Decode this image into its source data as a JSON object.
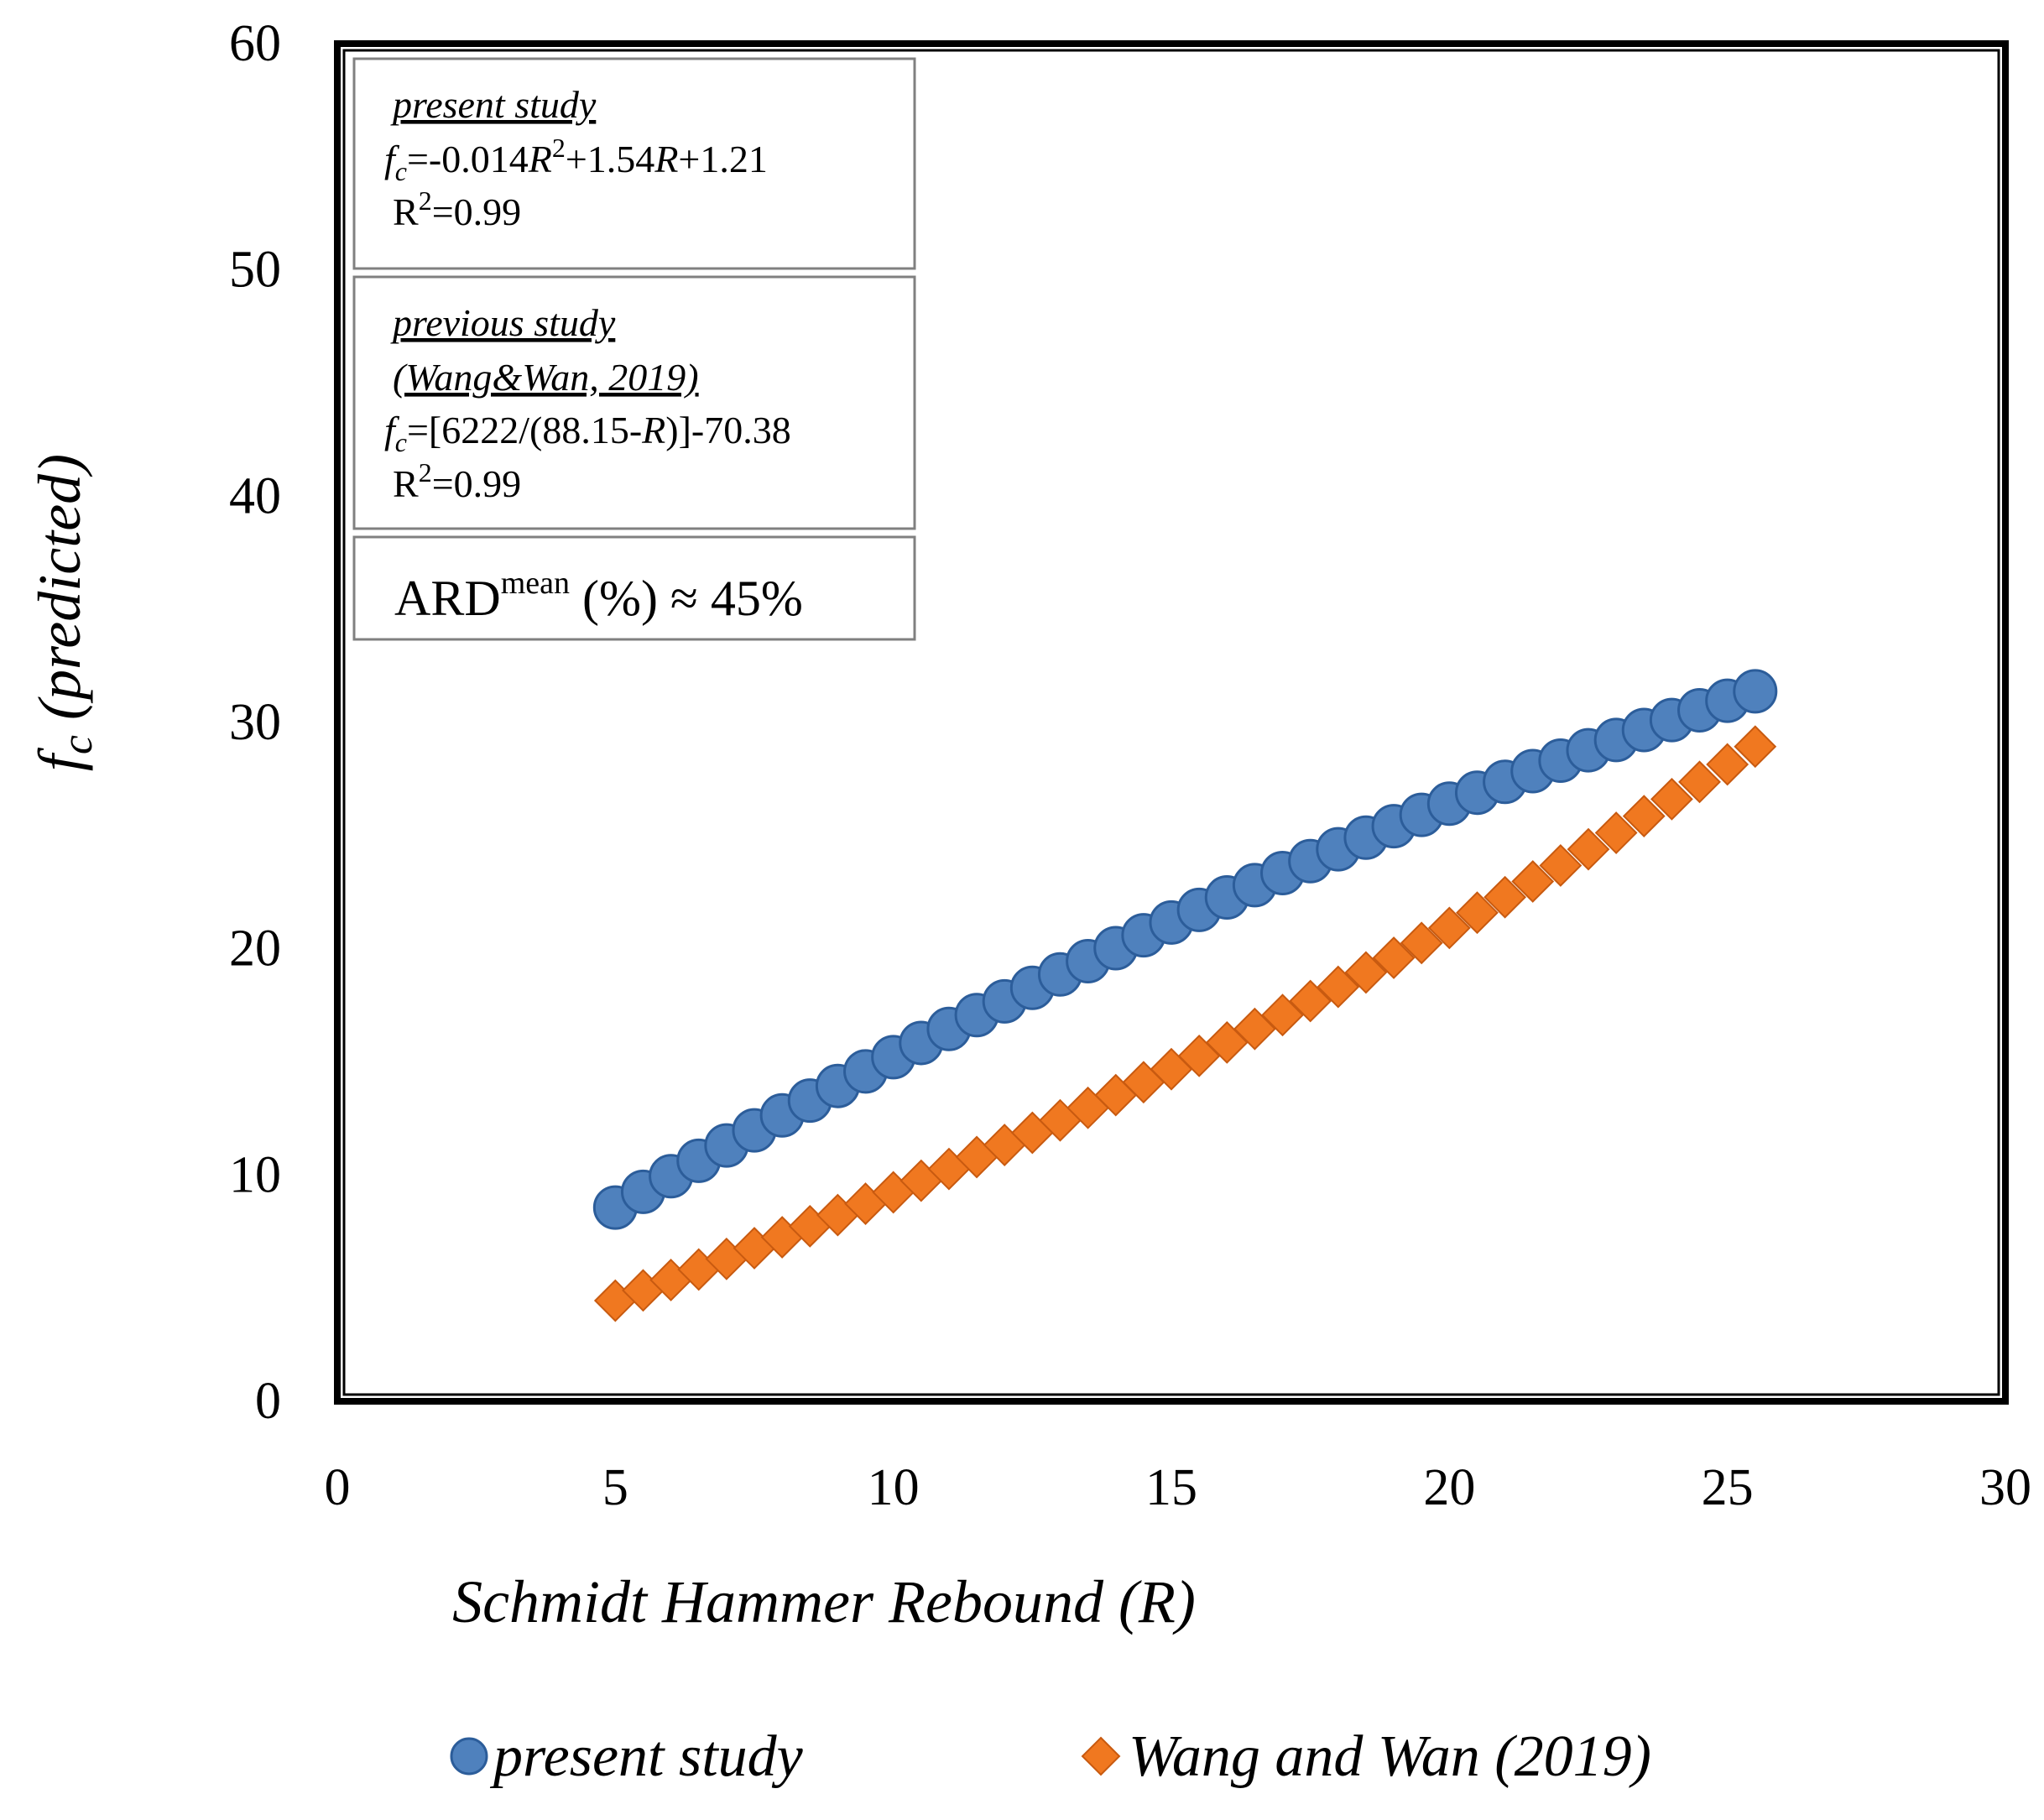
{
  "chart_data": {
    "type": "scatter",
    "xlabel": "Schmidt Hammer Rebound (R)",
    "ylabel_main": "f",
    "ylabel_sub": "c",
    "ylabel_rest": " (predicted)",
    "xlim": [
      0,
      30
    ],
    "ylim": [
      0,
      60
    ],
    "xticks": [
      0,
      5,
      10,
      15,
      20,
      25,
      30
    ],
    "yticks": [
      0,
      10,
      20,
      30,
      40,
      50,
      60
    ],
    "x_start": 5,
    "x_end": 25.5,
    "x_step": 0.5,
    "series": [
      {
        "name": "present study",
        "marker": "circle",
        "color": "#4f81bd",
        "model": "quadratic",
        "coefficients": {
          "a": -0.014,
          "b": 1.54,
          "c": 1.21
        }
      },
      {
        "name": "Wang and Wan (2019)",
        "marker": "diamond",
        "color": "#f07820",
        "model": "hyperbolic",
        "coefficients": {
          "k": 6222,
          "r0": 88.15,
          "d": -70.38
        }
      }
    ],
    "annotations": {
      "present": {
        "title": "present study",
        "eq_f": "f",
        "eq_sub": "c",
        "eq_a": "=-0.014",
        "eq_R": "R",
        "eq_sup": "2",
        "eq_b": "+1.54",
        "eq_R2": "R",
        "eq_c": "+1.21",
        "r2_label": "R",
        "r2_sup": "2",
        "r2_value": "=0.99"
      },
      "previous": {
        "title_line1": "previous study",
        "title_line2": "(Wang&Wan, 2019)",
        "eq_f": "f",
        "eq_sub": "c",
        "eq_a": "=[6222/(88.15-",
        "eq_R": "R",
        "eq_b": ")]-70.38",
        "r2_label": "R",
        "r2_sup": "2",
        "r2_value": "=0.99"
      },
      "ard": {
        "label": "ARD",
        "sup": "mean",
        "rest": " (%) ≈ 45%"
      }
    }
  }
}
